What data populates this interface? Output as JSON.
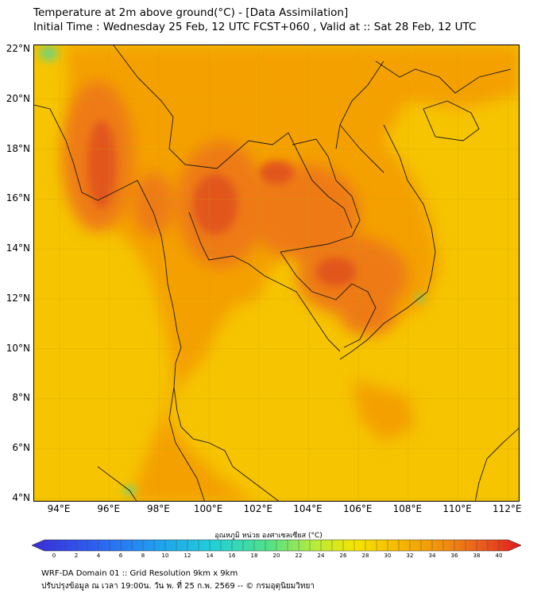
{
  "header": {
    "title_line1": "Temperature at 2m above ground(°C) - [Data Assimilation]",
    "title_line2": "Initial Time : Wednesday 25 Feb, 12 UTC FCST+060 , Valid at :: Sat 28 Feb, 12 UTC"
  },
  "map": {
    "lat_labels": [
      "22°N",
      "20°N",
      "18°N",
      "16°N",
      "14°N",
      "12°N",
      "10°N",
      "8°N",
      "6°N",
      "4°N"
    ],
    "lon_labels": [
      "94°E",
      "96°E",
      "98°E",
      "100°E",
      "102°E",
      "104°E",
      "106°E",
      "108°E",
      "110°E",
      "112°E"
    ],
    "colors": {
      "ocean": "#f6c400",
      "warm": "#f4a000",
      "hot": "#ee7a14",
      "hottest": "#e2561c",
      "cool_green": "#7fd16b",
      "border": "#1a1a1a"
    }
  },
  "colorbar": {
    "title": "อุณหภูมิ หน่วย องศาเซลเซียส (°C)",
    "tick_labels": [
      "0",
      "2",
      "4",
      "6",
      "8",
      "10",
      "12",
      "14",
      "16",
      "18",
      "20",
      "22",
      "24",
      "26",
      "28",
      "30",
      "32",
      "34",
      "36",
      "38",
      "40"
    ]
  },
  "footer": {
    "line1": "WRF-DA Domain 01 :: Grid Resolution 9km x 9km",
    "line2": "ปรับปรุงข้อมูล ณ เวลา 19:00น. วัน พ. ที่ 25 ก.พ. 2569 -- © กรมอุตุนิยมวิทยา"
  }
}
